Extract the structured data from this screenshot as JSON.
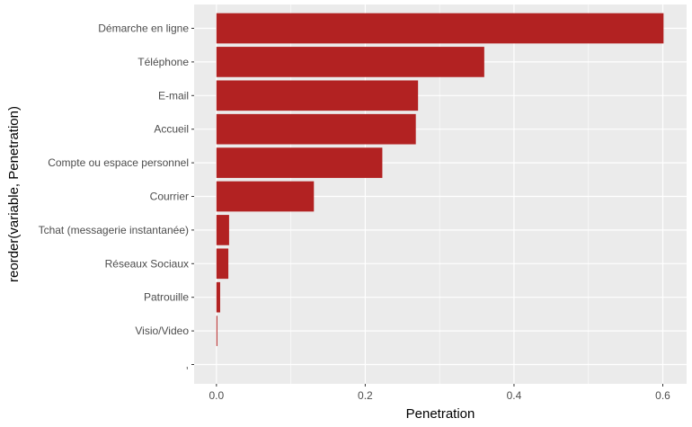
{
  "chart_data": {
    "type": "bar",
    "orientation": "horizontal",
    "categories": [
      "Démarche en ligne",
      "Téléphone",
      "E-mail",
      "Accueil",
      "Compte ou espace personnel",
      "Courrier",
      "Tchat (messagerie instantanée)",
      "Réseaux Sociaux",
      "Patrouille",
      "Visio/Video",
      ","
    ],
    "values": [
      0.601,
      0.36,
      0.271,
      0.268,
      0.223,
      0.131,
      0.017,
      0.016,
      0.005,
      0.001,
      0.0
    ],
    "xlabel": "Penetration",
    "ylabel": "reorder(variable, Penetration)",
    "xlim": [
      -0.03,
      0.632
    ],
    "xticks": [
      0.0,
      0.2,
      0.4,
      0.6
    ],
    "xtick_labels": [
      "0.0",
      "0.2",
      "0.4",
      "0.6"
    ],
    "grid": true,
    "colors": {
      "bar": "#b22222",
      "panel": "#ebebeb",
      "grid": "#ffffff"
    }
  }
}
